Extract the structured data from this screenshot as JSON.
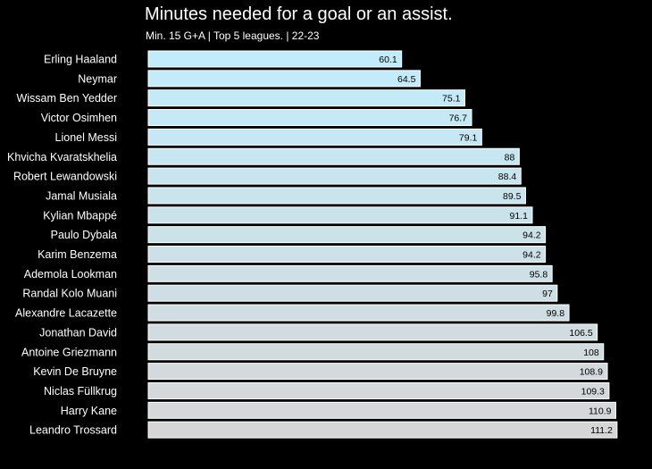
{
  "chart_data": {
    "type": "bar",
    "orientation": "horizontal",
    "title": "Minutes needed for a goal or an assist.",
    "subtitle": "Min. 15 G+A | Top 5 leagues. | 22-23",
    "xlabel": "",
    "ylabel": "",
    "grid": false,
    "categories": [
      "Erling Haaland",
      "Neymar",
      "Wissam Ben Yedder",
      "Victor Osimhen",
      "Lionel Messi",
      "Khvicha Kvaratskhelia",
      "Robert Lewandowski",
      "Jamal Musiala",
      "Kylian Mbappé",
      "Paulo Dybala",
      "Karim Benzema",
      "Ademola Lookman",
      "Randal Kolo Muani",
      "Alexandre Lacazette",
      "Jonathan David",
      "Antoine Griezmann",
      "Kevin De Bruyne",
      "Niclas Füllkrug",
      "Harry Kane",
      "Leandro Trossard"
    ],
    "values": [
      60.1,
      64.5,
      75.1,
      76.7,
      79.1,
      88,
      88.4,
      89.5,
      91.1,
      94.2,
      94.2,
      95.8,
      97,
      99.8,
      106.5,
      108,
      108.9,
      109.3,
      110.9,
      111.2
    ],
    "value_labels": [
      "60.1",
      "64.5",
      "75.1",
      "76.7",
      "79.1",
      "88",
      "88.4",
      "89.5",
      "91.1",
      "94.2",
      "94.2",
      "95.8",
      "97",
      "99.8",
      "106.5",
      "108",
      "108.9",
      "109.3",
      "110.9",
      "111.2"
    ],
    "colors": {
      "background": "#000000",
      "text": "#ffffff",
      "value_text": "#000000",
      "bar_outline": "#ffffff",
      "bar_gradient_start": "#c2ecfb",
      "bar_gradient_end": "#d6d6d6"
    }
  }
}
